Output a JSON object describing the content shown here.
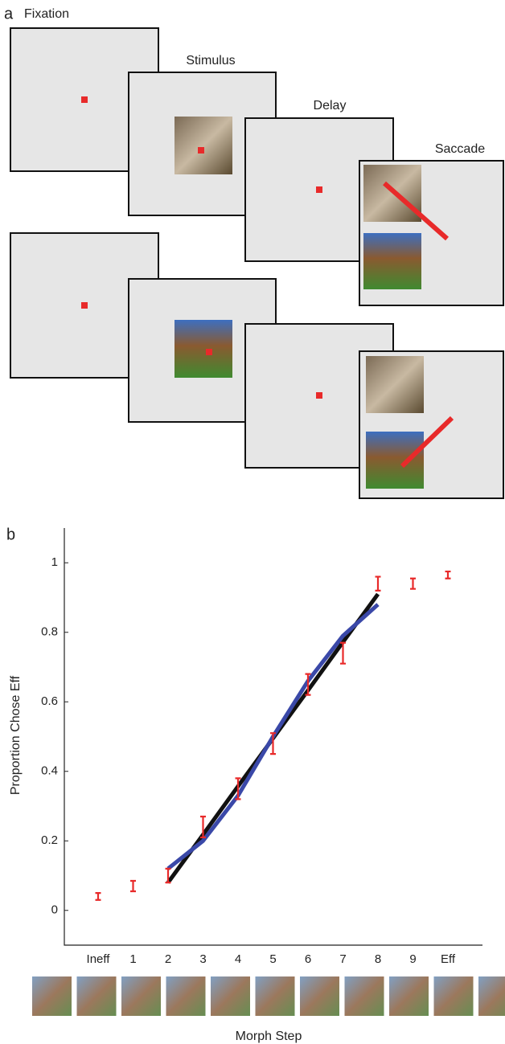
{
  "panel_a": {
    "label": "a",
    "frames": [
      "Fixation",
      "Stimulus",
      "Delay",
      "Saccade"
    ]
  },
  "panel_b": {
    "label": "b"
  },
  "chart_data": {
    "type": "line",
    "x_label": "Morph Step",
    "y_label": "Proportion Chose Eff",
    "categories": [
      "Ineff",
      "1",
      "2",
      "3",
      "4",
      "5",
      "6",
      "7",
      "8",
      "9",
      "Eff"
    ],
    "ylim": [
      -0.1,
      1.1
    ],
    "yticks": [
      0,
      0.2,
      0.4,
      0.6,
      0.8,
      1
    ],
    "grid": false,
    "series": [
      {
        "type": "errorbar",
        "color": "#e82a2a",
        "values": [
          0.04,
          0.07,
          0.1,
          0.24,
          0.35,
          0.48,
          0.65,
          0.74,
          0.94,
          0.94,
          0.965
        ],
        "errors": [
          0.01,
          0.015,
          0.02,
          0.03,
          0.03,
          0.03,
          0.03,
          0.03,
          0.02,
          0.015,
          0.01
        ]
      },
      {
        "type": "line",
        "color": "#111111",
        "values": [
          null,
          null,
          0.08,
          0.218,
          0.357,
          0.495,
          0.633,
          0.772,
          0.91,
          null,
          null
        ]
      },
      {
        "type": "line",
        "color": "#3a48a8",
        "values": [
          null,
          null,
          0.12,
          0.2,
          0.33,
          0.5,
          0.66,
          0.79,
          0.88,
          null,
          null
        ]
      }
    ]
  }
}
